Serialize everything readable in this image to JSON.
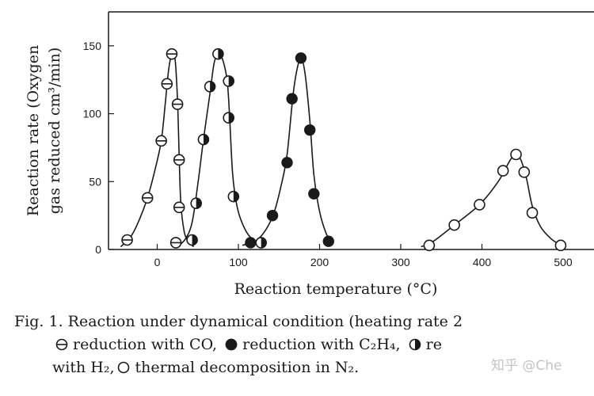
{
  "chart_data": {
    "type": "scatter",
    "xlabel": "Reaction temperature (°C)",
    "ylabel_line1": "Reaction rate (Oxygen",
    "ylabel_line2": "gas reduced cm³/min)",
    "xlim": [
      -60,
      540
    ],
    "ylim": [
      0,
      175
    ],
    "x_ticks": [
      0,
      100,
      200,
      300,
      400,
      500
    ],
    "y_ticks": [
      0,
      50,
      100,
      150
    ],
    "grid": false,
    "series": [
      {
        "name": "reduction with CO",
        "marker": "circle-with-horizontal-line",
        "points": [
          [
            -37,
            7
          ],
          [
            -12,
            38
          ],
          [
            5,
            80
          ],
          [
            12,
            122
          ],
          [
            18,
            144
          ],
          [
            25,
            107
          ],
          [
            27,
            66
          ],
          [
            27,
            31
          ],
          [
            23,
            5
          ]
        ],
        "curve": [
          [
            -45,
            2
          ],
          [
            -32,
            10
          ],
          [
            -22,
            22
          ],
          [
            -12,
            38
          ],
          [
            -3,
            58
          ],
          [
            5,
            80
          ],
          [
            10,
            108
          ],
          [
            14,
            132
          ],
          [
            18,
            144
          ],
          [
            22,
            140
          ],
          [
            25,
            110
          ],
          [
            27,
            70
          ],
          [
            29,
            35
          ],
          [
            33,
            14
          ],
          [
            38,
            6
          ],
          [
            45,
            2
          ]
        ]
      },
      {
        "name": "reduction with H2",
        "marker": "half-filled-circle",
        "points": [
          [
            43,
            7
          ],
          [
            48,
            34
          ],
          [
            57,
            81
          ],
          [
            65,
            120
          ],
          [
            75,
            144
          ],
          [
            88,
            124
          ],
          [
            88,
            97
          ],
          [
            94,
            39
          ],
          [
            128,
            5
          ]
        ],
        "curve": [
          [
            25,
            2
          ],
          [
            35,
            8
          ],
          [
            43,
            20
          ],
          [
            50,
            48
          ],
          [
            57,
            81
          ],
          [
            65,
            115
          ],
          [
            70,
            137
          ],
          [
            75,
            144
          ],
          [
            80,
            141
          ],
          [
            86,
            125
          ],
          [
            89,
            100
          ],
          [
            93,
            55
          ],
          [
            99,
            30
          ],
          [
            108,
            15
          ],
          [
            118,
            7
          ],
          [
            130,
            3
          ]
        ]
      },
      {
        "name": "reduction with C2H4",
        "marker": "filled-circle",
        "points": [
          [
            115,
            5
          ],
          [
            142,
            25
          ],
          [
            160,
            64
          ],
          [
            166,
            111
          ],
          [
            177,
            141
          ],
          [
            188,
            88
          ],
          [
            193,
            41
          ],
          [
            211,
            6
          ]
        ],
        "curve": [
          [
            105,
            3
          ],
          [
            125,
            8
          ],
          [
            142,
            24
          ],
          [
            153,
            48
          ],
          [
            160,
            70
          ],
          [
            167,
            112
          ],
          [
            172,
            132
          ],
          [
            177,
            141
          ],
          [
            182,
            130
          ],
          [
            188,
            95
          ],
          [
            193,
            55
          ],
          [
            200,
            28
          ],
          [
            208,
            12
          ],
          [
            215,
            5
          ]
        ]
      },
      {
        "name": "thermal decomposition in N2",
        "marker": "open-circle",
        "points": [
          [
            335,
            3
          ],
          [
            366,
            18
          ],
          [
            397,
            33
          ],
          [
            426,
            58
          ],
          [
            442,
            70
          ],
          [
            452,
            57
          ],
          [
            462,
            27
          ],
          [
            497,
            3
          ]
        ],
        "curve": [
          [
            325,
            2
          ],
          [
            340,
            6
          ],
          [
            366,
            18
          ],
          [
            397,
            33
          ],
          [
            420,
            50
          ],
          [
            435,
            66
          ],
          [
            442,
            70
          ],
          [
            448,
            66
          ],
          [
            455,
            52
          ],
          [
            462,
            32
          ],
          [
            472,
            17
          ],
          [
            485,
            8
          ],
          [
            500,
            2
          ]
        ]
      }
    ]
  },
  "caption": {
    "line1": "Fig. 1.   Reaction under dynamical condition (heating rate 2",
    "line2_a": "reduction with CO,",
    "line2_b": "reduction with C₂H₄,",
    "line2_c": "re",
    "line3_a": "with H₂,",
    "line3_b": "thermal decomposition in N₂."
  },
  "watermark": "知乎 @Che"
}
